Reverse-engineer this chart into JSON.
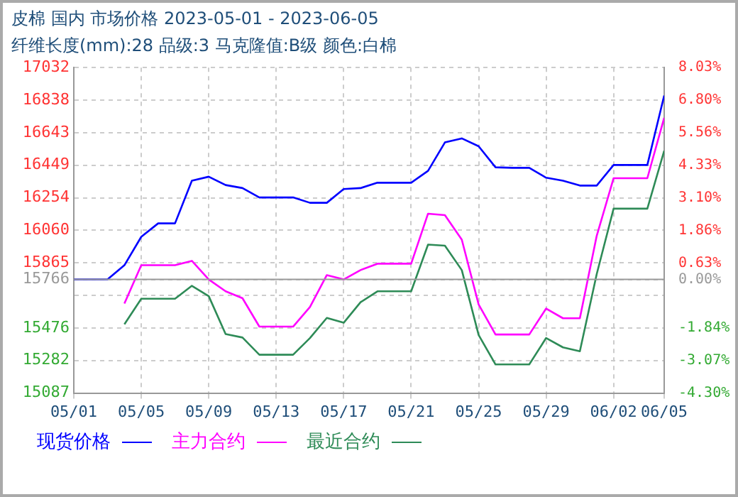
{
  "chart_data": {
    "type": "line",
    "title": "皮棉 国内 市场价格 2023-05-01 - 2023-06-05",
    "subtitle": "纤维长度(mm):28 品级:3 马克隆值:B级 颜色:白棉",
    "x": [
      "2023-05-01",
      "2023-05-02",
      "2023-05-03",
      "2023-05-04",
      "2023-05-05",
      "2023-05-06",
      "2023-05-07",
      "2023-05-08",
      "2023-05-09",
      "2023-05-10",
      "2023-05-11",
      "2023-05-12",
      "2023-05-13",
      "2023-05-14",
      "2023-05-15",
      "2023-05-16",
      "2023-05-17",
      "2023-05-18",
      "2023-05-19",
      "2023-05-20",
      "2023-05-21",
      "2023-05-22",
      "2023-05-23",
      "2023-05-24",
      "2023-05-25",
      "2023-05-26",
      "2023-05-27",
      "2023-05-28",
      "2023-05-29",
      "2023-05-30",
      "2023-05-31",
      "2023-06-01",
      "2023-06-02",
      "2023-06-03",
      "2023-06-04",
      "2023-06-05"
    ],
    "series": [
      {
        "name": "现货价格",
        "color": "#0000ff",
        "values": [
          15766,
          15766,
          15766,
          15851,
          16021,
          16101,
          16101,
          16356,
          16380,
          16330,
          16312,
          16256,
          16256,
          16256,
          16224,
          16224,
          16306,
          16312,
          16344,
          16344,
          16344,
          16415,
          16585,
          16609,
          16562,
          16436,
          16433,
          16433,
          16374,
          16356,
          16327,
          16327,
          16450,
          16450,
          16450,
          16865
        ]
      },
      {
        "name": "主力合约",
        "color": "#ff00ff",
        "values": [
          null,
          null,
          null,
          15622,
          15851,
          15851,
          15851,
          15877,
          15766,
          15695,
          15654,
          15484,
          15484,
          15484,
          15601,
          15792,
          15766,
          15822,
          15860,
          15860,
          15860,
          16159,
          16150,
          16004,
          15616,
          15437,
          15437,
          15437,
          15592,
          15534,
          15534,
          16027,
          16371,
          16371,
          16371,
          16732
        ]
      },
      {
        "name": "最近合约",
        "color": "#2e8b57",
        "values": [
          null,
          null,
          null,
          15498,
          15651,
          15651,
          15651,
          15728,
          15666,
          15440,
          15419,
          15316,
          15316,
          15316,
          15416,
          15536,
          15507,
          15630,
          15695,
          15695,
          15695,
          15974,
          15968,
          15822,
          15434,
          15258,
          15258,
          15258,
          15416,
          15360,
          15337,
          15798,
          16189,
          16189,
          16189,
          16535
        ]
      }
    ],
    "xlim": [
      "2023-05-01",
      "2023-06-05"
    ],
    "xticks": [
      {
        "value": "2023-05-01",
        "label": "05/01"
      },
      {
        "value": "2023-05-05",
        "label": "05/05"
      },
      {
        "value": "2023-05-09",
        "label": "05/09"
      },
      {
        "value": "2023-05-13",
        "label": "05/13"
      },
      {
        "value": "2023-05-17",
        "label": "05/17"
      },
      {
        "value": "2023-05-21",
        "label": "05/21"
      },
      {
        "value": "2023-05-25",
        "label": "05/25"
      },
      {
        "value": "2023-05-29",
        "label": "05/29"
      },
      {
        "value": "2023-06-02",
        "label": "06/02"
      },
      {
        "value": "2023-06-05",
        "label": "06/05"
      }
    ],
    "ylim": [
      15087,
      17032
    ],
    "yticks": [
      15087,
      15282,
      15476,
      {
        "value": 15671,
        "label": null
      },
      15766,
      15865,
      16060,
      16254,
      16449,
      16643,
      16838,
      17032
    ],
    "y2lim": [
      -4.3,
      8.03
    ],
    "y2ticks": [
      {
        "value": -4.3,
        "label": "-4.30%"
      },
      {
        "value": -3.07,
        "label": "-3.07%"
      },
      {
        "value": -1.84,
        "label": "-1.84%"
      },
      {
        "value": 0.0,
        "label": "0.00%"
      },
      {
        "value": 0.63,
        "label": "0.63%"
      },
      {
        "value": 1.86,
        "label": "1.86%"
      },
      {
        "value": 3.1,
        "label": "3.10%"
      },
      {
        "value": 4.33,
        "label": "4.33%"
      },
      {
        "value": 5.56,
        "label": "5.56%"
      },
      {
        "value": 6.8,
        "label": "6.80%"
      },
      {
        "value": 8.03,
        "label": "8.03%"
      }
    ],
    "ref_lines": [
      {
        "axis": "y",
        "value": 15766,
        "color": "#999999"
      }
    ],
    "grid": true,
    "legend": "bottom"
  }
}
